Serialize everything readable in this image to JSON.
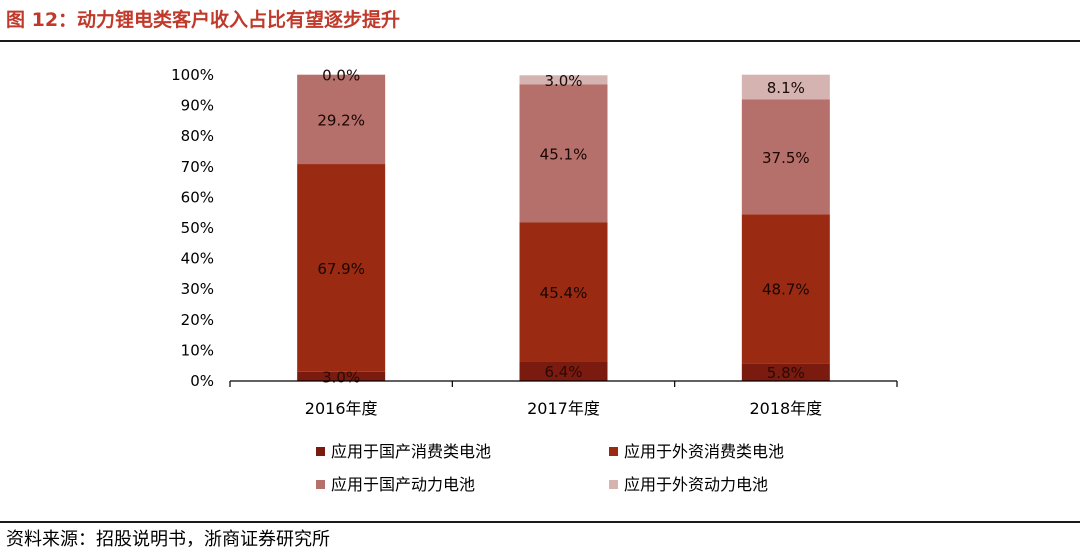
{
  "figure": {
    "title": "图 12：动力锂电类客户收入占比有望逐步提升",
    "source": "资料来源：招股说明书，浙商证券研究所"
  },
  "chart_data": {
    "type": "bar",
    "stacked": true,
    "categories": [
      "2016年度",
      "2017年度",
      "2018年度"
    ],
    "series": [
      {
        "name": "应用于国产消费类电池",
        "values": [
          3.0,
          6.4,
          5.8
        ],
        "labels": [
          "3.0%",
          "6.4%",
          "5.8%"
        ],
        "color": "#7b1a0f"
      },
      {
        "name": "应用于外资消费类电池",
        "values": [
          67.9,
          45.4,
          48.7
        ],
        "labels": [
          "67.9%",
          "45.4%",
          "48.7%"
        ],
        "color": "#9b2a12"
      },
      {
        "name": "应用于国产动力电池",
        "values": [
          29.2,
          45.1,
          37.5
        ],
        "labels": [
          "29.2%",
          "45.1%",
          "37.5%"
        ],
        "color": "#b5706b"
      },
      {
        "name": "应用于外资动力电池",
        "values": [
          0.0,
          3.0,
          8.1
        ],
        "labels": [
          "0.0%",
          "3.0%",
          "8.1%"
        ],
        "color": "#d4b3b0"
      }
    ],
    "y_ticks": [
      "0%",
      "10%",
      "20%",
      "30%",
      "40%",
      "50%",
      "60%",
      "70%",
      "80%",
      "90%",
      "100%"
    ],
    "ylim": [
      0,
      100
    ],
    "grid": false,
    "legend_position": "bottom"
  }
}
